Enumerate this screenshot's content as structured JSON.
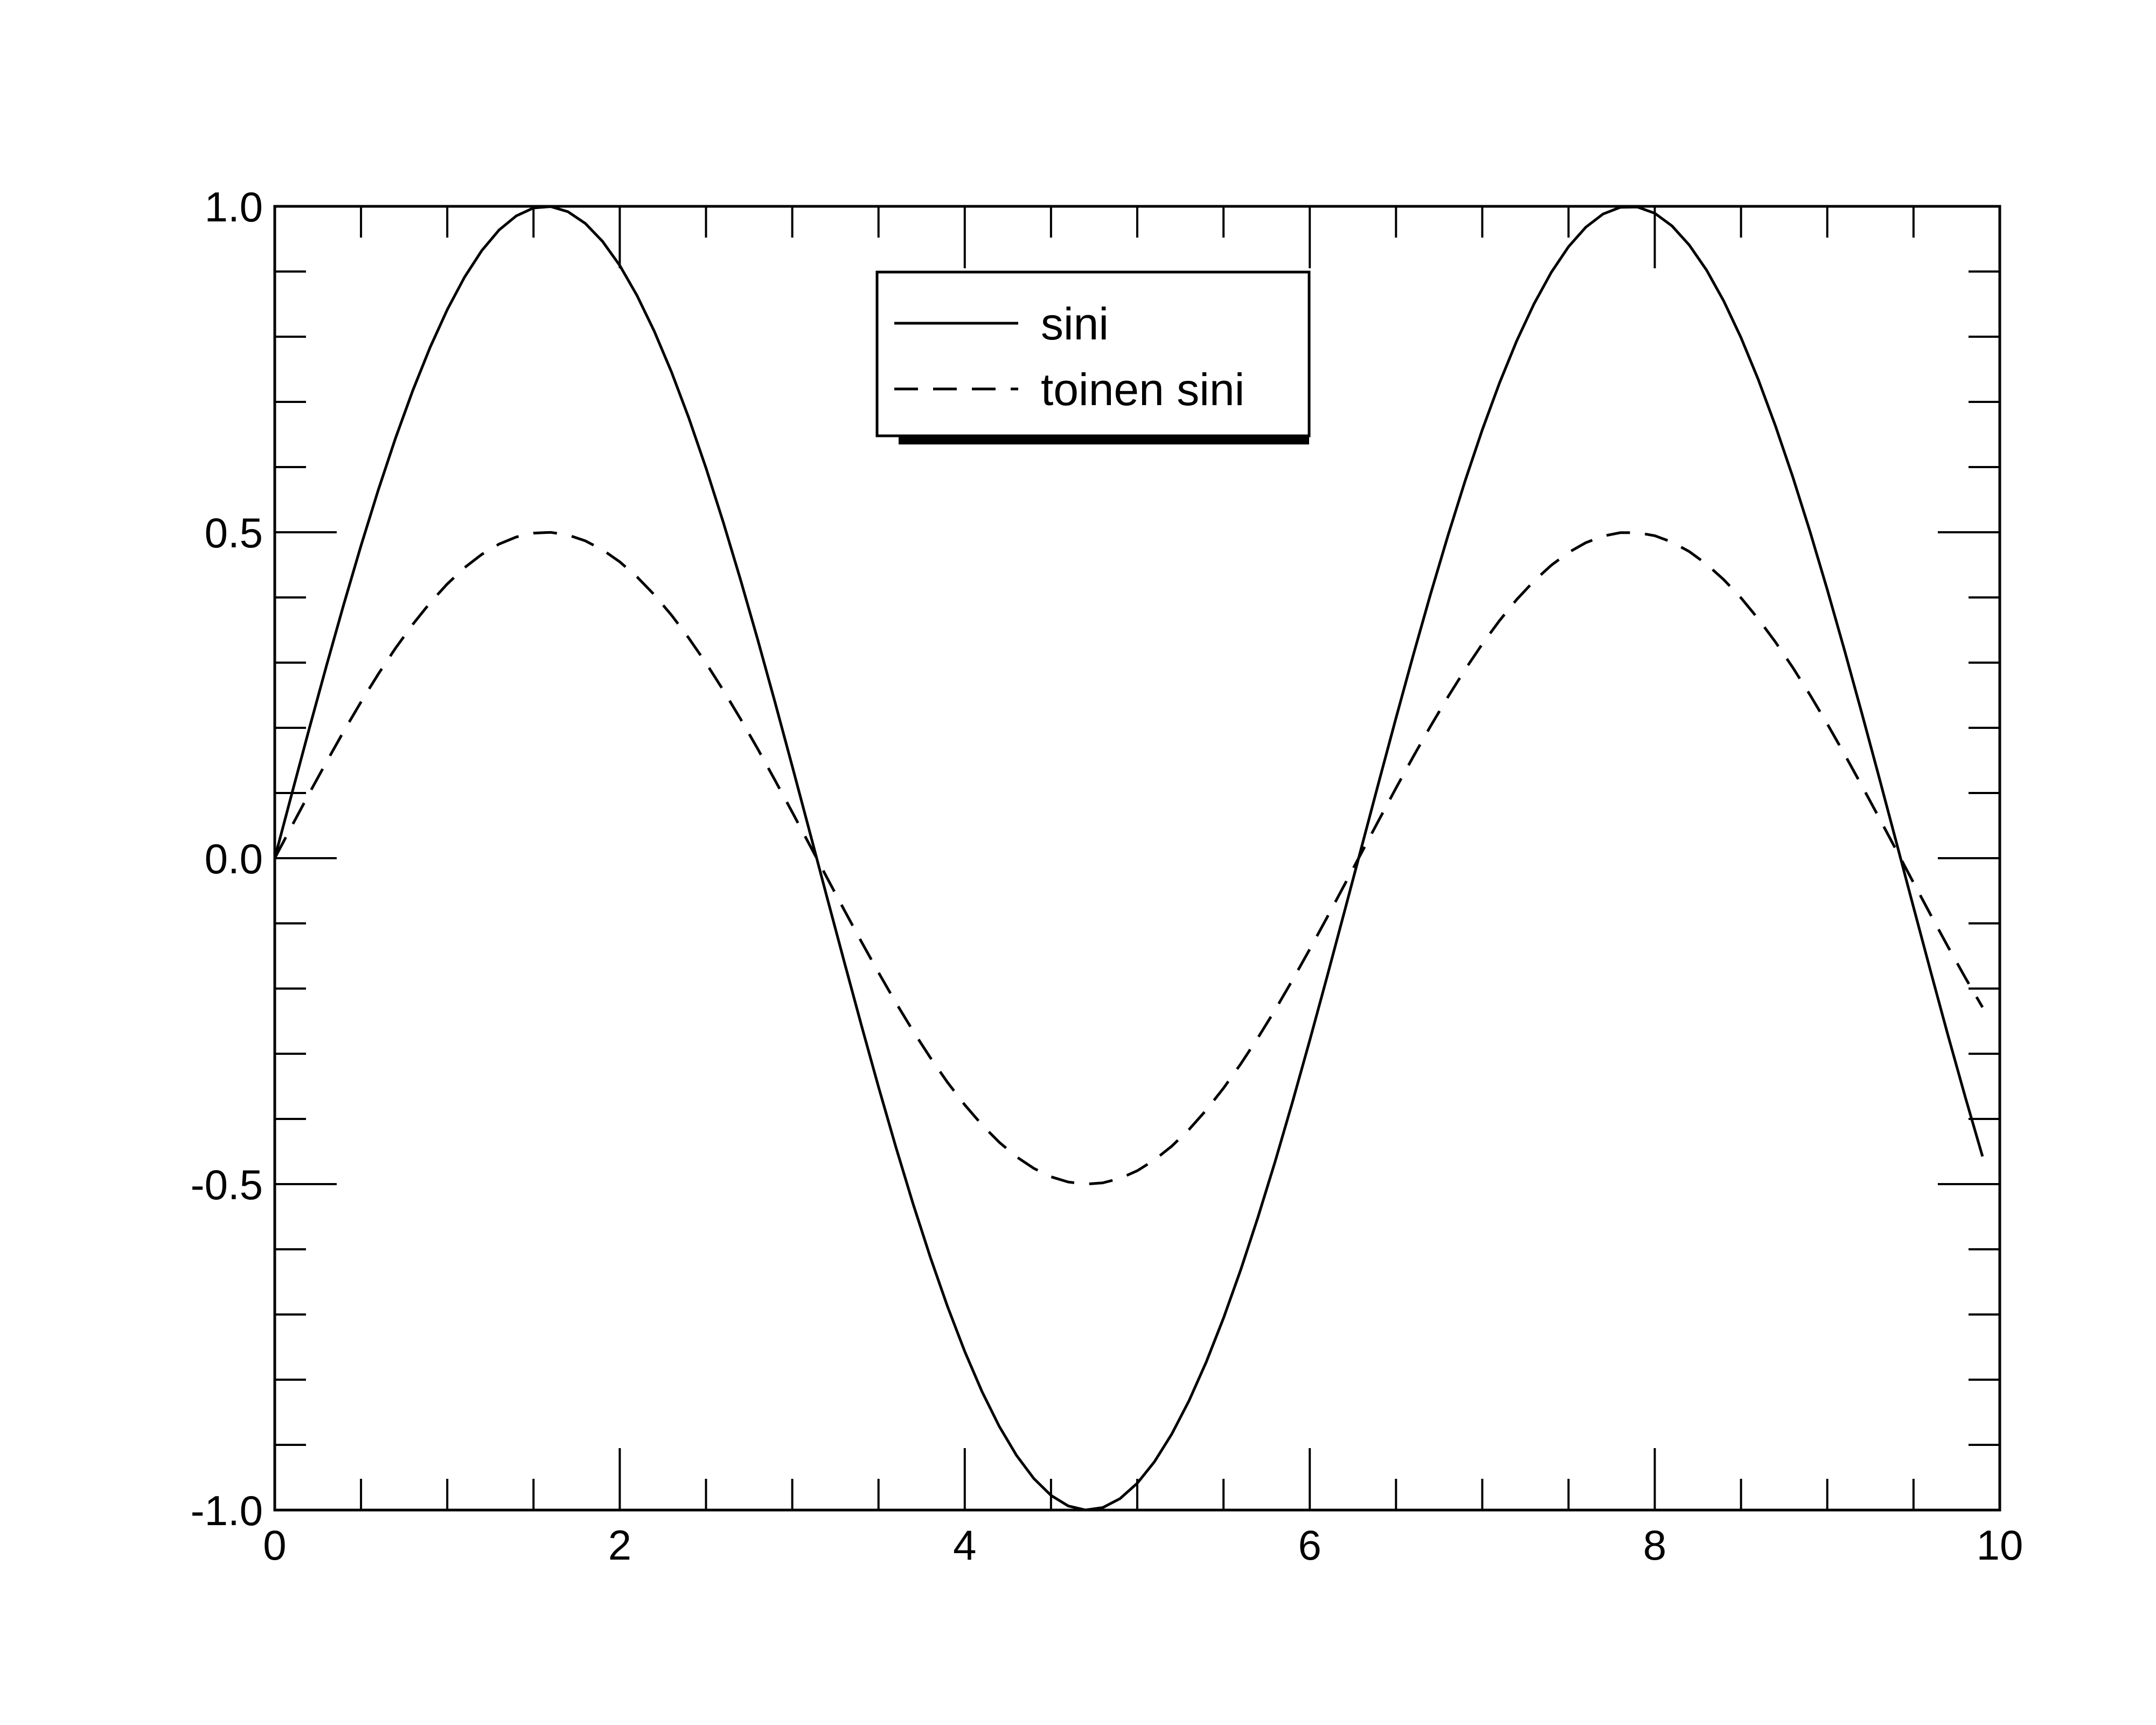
{
  "chart_data": {
    "type": "line",
    "title": "",
    "xlabel": "",
    "ylabel": "",
    "xlim": [
      0,
      10
    ],
    "ylim": [
      -1.0,
      1.0
    ],
    "x_major_ticks": [
      0,
      2,
      4,
      6,
      8,
      10
    ],
    "x_tick_labels": [
      "0",
      "2",
      "4",
      "6",
      "8",
      "10"
    ],
    "x_minor_step": 0.5,
    "y_major_ticks": [
      -1.0,
      -0.5,
      0.0,
      0.5,
      1.0
    ],
    "y_tick_labels": [
      "-1.0",
      "-0.5",
      "0.0",
      "0.5",
      "1.0"
    ],
    "y_minor_step": 0.1,
    "grid": false,
    "legend_position": "top-center",
    "series": [
      {
        "name": "sini",
        "style": "solid",
        "color": "#000000",
        "x_start": 0,
        "x_end": 9.9,
        "x_step": 0.1,
        "y": [
          0.0,
          0.0998,
          0.1987,
          0.2955,
          0.3894,
          0.4794,
          0.5646,
          0.6442,
          0.7174,
          0.7833,
          0.8415,
          0.8912,
          0.932,
          0.9636,
          0.9854,
          0.9975,
          0.9996,
          0.9917,
          0.9738,
          0.9463,
          0.9093,
          0.8632,
          0.8085,
          0.7457,
          0.6755,
          0.5985,
          0.5155,
          0.4274,
          0.335,
          0.2392,
          0.1411,
          0.0416,
          -0.0584,
          -0.1577,
          -0.2555,
          -0.3508,
          -0.4425,
          -0.5298,
          -0.6119,
          -0.6878,
          -0.7568,
          -0.8183,
          -0.8716,
          -0.9162,
          -0.9516,
          -0.9775,
          -0.9937,
          -0.9999,
          -0.9962,
          -0.9825,
          -0.9589,
          -0.9258,
          -0.8835,
          -0.8323,
          -0.7728,
          -0.7055,
          -0.6313,
          -0.5507,
          -0.4646,
          -0.3739,
          -0.2794,
          -0.1822,
          -0.0831,
          0.0168,
          0.1165,
          0.2151,
          0.3115,
          0.4048,
          0.494,
          0.5784,
          0.657,
          0.729,
          0.7937,
          0.8504,
          0.8987,
          0.938,
          0.9679,
          0.9882,
          0.9985,
          0.9989,
          0.9894,
          0.9699,
          0.9407,
          0.9022,
          0.8546,
          0.7985,
          0.7344,
          0.663,
          0.5849,
          0.501,
          0.4121,
          0.319,
          0.2229,
          0.1245,
          0.0248,
          -0.0752,
          -0.1743,
          -0.2718,
          -0.3665,
          -0.4575
        ]
      },
      {
        "name": "toinen sini",
        "style": "dashed",
        "color": "#000000",
        "x_start": 0,
        "x_end": 9.9,
        "x_step": 0.1,
        "y": [
          0.0,
          0.0499,
          0.0993,
          0.1478,
          0.1947,
          0.2397,
          0.2823,
          0.3221,
          0.3587,
          0.3917,
          0.4207,
          0.4456,
          0.466,
          0.4818,
          0.4927,
          0.4987,
          0.4998,
          0.4958,
          0.4869,
          0.4731,
          0.4546,
          0.4316,
          0.4042,
          0.3728,
          0.3377,
          0.2993,
          0.2578,
          0.2137,
          0.1675,
          0.1196,
          0.0706,
          0.0208,
          -0.0292,
          -0.0789,
          -0.1278,
          -0.1754,
          -0.2213,
          -0.2649,
          -0.3059,
          -0.3439,
          -0.3784,
          -0.4091,
          -0.4358,
          -0.4581,
          -0.4758,
          -0.4888,
          -0.4968,
          -0.5,
          -0.4981,
          -0.4912,
          -0.4795,
          -0.4629,
          -0.4418,
          -0.4162,
          -0.3864,
          -0.3528,
          -0.3156,
          -0.2754,
          -0.2323,
          -0.1869,
          -0.1397,
          -0.0911,
          -0.0415,
          0.0084,
          0.0582,
          0.1076,
          0.1558,
          0.2024,
          0.247,
          0.2892,
          0.3285,
          0.3645,
          0.3969,
          0.4252,
          0.4493,
          0.469,
          0.484,
          0.4941,
          0.4993,
          0.4994,
          0.4947,
          0.4849,
          0.4704,
          0.4511,
          0.4273,
          0.3993,
          0.3672,
          0.3315,
          0.2925,
          0.2505,
          0.206,
          0.1595,
          0.1114,
          0.0622,
          0.0124,
          -0.0376,
          -0.0871,
          -0.1359,
          -0.1833,
          -0.2287
        ]
      }
    ]
  }
}
